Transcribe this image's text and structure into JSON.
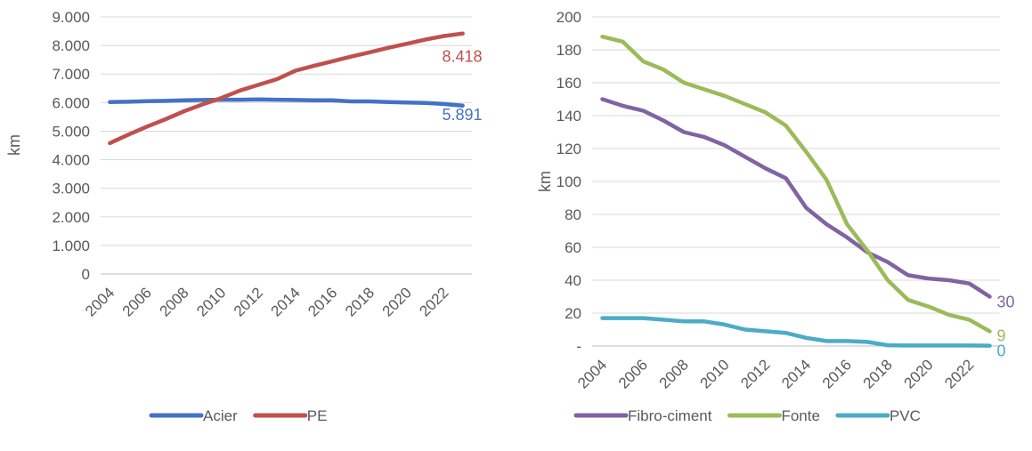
{
  "chart_data": [
    {
      "type": "line",
      "ylabel": "km",
      "x": [
        2004,
        2005,
        2006,
        2007,
        2008,
        2009,
        2010,
        2011,
        2012,
        2013,
        2014,
        2015,
        2016,
        2017,
        2018,
        2019,
        2020,
        2021,
        2022,
        2023
      ],
      "xtick_labels": [
        "2004",
        "2006",
        "2008",
        "2010",
        "2012",
        "2014",
        "2016",
        "2018",
        "2020",
        "2022"
      ],
      "ytick_labels": [
        "0",
        "1.000",
        "2.000",
        "3.000",
        "4.000",
        "5.000",
        "6.000",
        "7.000",
        "8.000",
        "9.000"
      ],
      "ylim": [
        0,
        9000
      ],
      "grid": true,
      "legend_position": "bottom",
      "series": [
        {
          "name": "Acier",
          "color": "#4472C4",
          "values": [
            6020,
            6030,
            6050,
            6060,
            6080,
            6090,
            6100,
            6100,
            6110,
            6100,
            6090,
            6080,
            6080,
            6040,
            6040,
            6020,
            6000,
            5990,
            5950,
            5891
          ],
          "end_label": "5.891"
        },
        {
          "name": "PE",
          "color": "#C0504D",
          "values": [
            4580,
            4880,
            5160,
            5420,
            5700,
            5940,
            6160,
            6420,
            6620,
            6820,
            7120,
            7290,
            7450,
            7610,
            7760,
            7920,
            8060,
            8210,
            8330,
            8418
          ],
          "end_label": "8.418"
        }
      ]
    },
    {
      "type": "line",
      "ylabel": "km",
      "x": [
        2004,
        2005,
        2006,
        2007,
        2008,
        2009,
        2010,
        2011,
        2012,
        2013,
        2014,
        2015,
        2016,
        2017,
        2018,
        2019,
        2020,
        2021,
        2022,
        2023
      ],
      "xtick_labels": [
        "2004",
        "2006",
        "2008",
        "2010",
        "2012",
        "2014",
        "2016",
        "2018",
        "2020",
        "2022"
      ],
      "ytick_labels": [
        "-",
        "20",
        "40",
        "60",
        "80",
        "100",
        "120",
        "140",
        "160",
        "180",
        "200"
      ],
      "ylim": [
        0,
        200
      ],
      "grid": true,
      "legend_position": "bottom",
      "series": [
        {
          "name": "Fibro-ciment",
          "color": "#8064A2",
          "values": [
            150,
            146,
            143,
            137,
            130,
            127,
            122,
            115,
            108,
            102,
            84,
            74,
            66,
            57,
            51,
            43,
            41,
            40,
            38,
            30
          ],
          "end_label": "30"
        },
        {
          "name": "Fonte",
          "color": "#9BBB59",
          "values": [
            188,
            185,
            173,
            168,
            160,
            156,
            152,
            147,
            142,
            134,
            118,
            101,
            74,
            58,
            40,
            28,
            24,
            19,
            16,
            9
          ],
          "end_label": "9"
        },
        {
          "name": "PVC",
          "color": "#4BACC6",
          "values": [
            17,
            17,
            17,
            16,
            15,
            15,
            13,
            10,
            9,
            8,
            5,
            3,
            3,
            2.5,
            0.5,
            0.3,
            0.3,
            0.3,
            0.3,
            0.2
          ],
          "end_label": "0"
        }
      ]
    }
  ]
}
